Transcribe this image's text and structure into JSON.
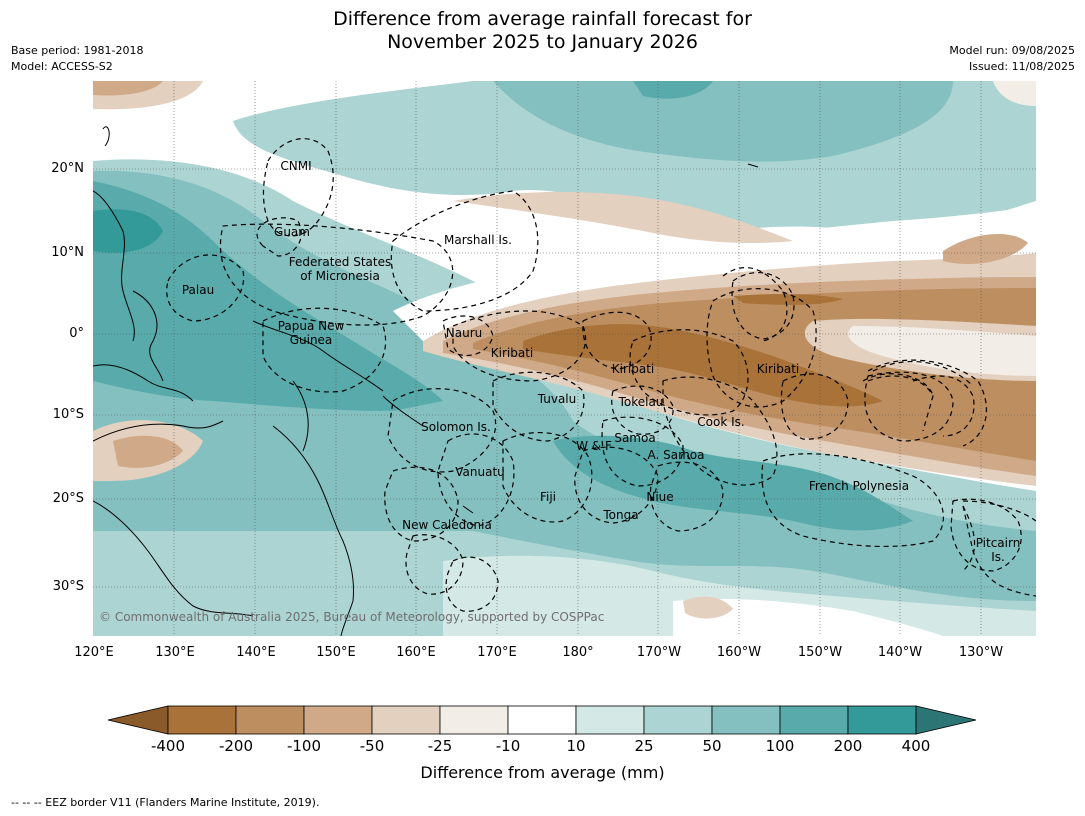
{
  "title_line1": "Difference from average rainfall forecast for",
  "title_line2": "November 2025 to January 2026",
  "meta_left": {
    "base_period": "Base period: 1981-2018",
    "model": "Model: ACCESS-S2"
  },
  "meta_right": {
    "model_run": "Model run: 09/08/2025",
    "issued": "Issued: 11/08/2025"
  },
  "map": {
    "lon_range": [
      120,
      237
    ],
    "lat_range": [
      -37,
      31
    ],
    "lat_ticks": [
      "20°N",
      "10°N",
      "0°",
      "10°S",
      "20°S",
      "30°S"
    ],
    "lon_ticks": [
      "120°E",
      "130°E",
      "140°E",
      "150°E",
      "160°E",
      "170°E",
      "180°",
      "170°W",
      "160°W",
      "150°W",
      "140°W",
      "130°W"
    ],
    "regions": [
      {
        "label": "CNMI"
      },
      {
        "label": "Guam"
      },
      {
        "label": "Marshall Is."
      },
      {
        "label": "Federated States\nof Micronesia"
      },
      {
        "label": "Palau"
      },
      {
        "label": "Papua New\nGuinea"
      },
      {
        "label": "Nauru"
      },
      {
        "label": "Kiribati"
      },
      {
        "label": "Kiribati"
      },
      {
        "label": "Kiribati"
      },
      {
        "label": "Tuvalu"
      },
      {
        "label": "Tokelau"
      },
      {
        "label": "Cook Is."
      },
      {
        "label": "Solomon Is."
      },
      {
        "label": "Samoa"
      },
      {
        "label": "W & F"
      },
      {
        "label": "A. Samoa"
      },
      {
        "label": "Vanuatu"
      },
      {
        "label": "Fiji"
      },
      {
        "label": "Niue"
      },
      {
        "label": "Tonga"
      },
      {
        "label": "French Polynesia"
      },
      {
        "label": "New Caledonia"
      },
      {
        "label": "Pitcairn\nIs."
      }
    ],
    "copyright": "© Commonwealth of Australia 2025, Bureau of Meteorology, supported by COSPPac"
  },
  "colorbar": {
    "ticks": [
      "-400",
      "-200",
      "-100",
      "-50",
      "-25",
      "-10",
      "10",
      "25",
      "50",
      "100",
      "200",
      "400"
    ],
    "colors": [
      "#8b5a2b",
      "#a87238",
      "#bd8e60",
      "#d0aa88",
      "#e4d0bf",
      "#f2ede6",
      "#ffffff",
      "#d4e8e6",
      "#acd4d2",
      "#84c0bf",
      "#58abaa",
      "#339999",
      "#2d7574"
    ],
    "label": "Difference from average (mm)"
  },
  "legend_note": "--  --  -- EEZ border V11 (Flanders Marine Institute, 2019)."
}
